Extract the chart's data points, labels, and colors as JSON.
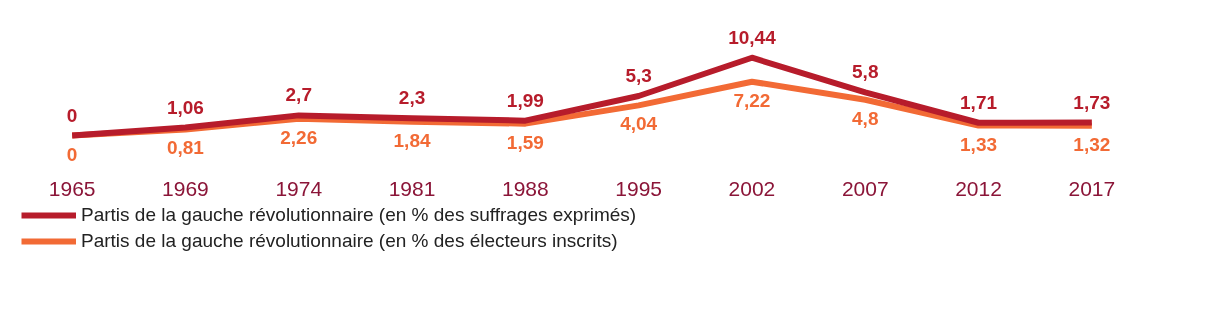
{
  "chart_data": {
    "type": "line",
    "categories": [
      "1965",
      "1969",
      "1974",
      "1981",
      "1988",
      "1995",
      "2002",
      "2007",
      "2012",
      "2017"
    ],
    "series": [
      {
        "name": "Partis de la gauche révolutionnaire (en % des suffrages exprimés)",
        "color": "#b71c2b",
        "values": [
          0,
          1.06,
          2.7,
          2.3,
          1.99,
          5.3,
          10.44,
          5.8,
          1.71,
          1.73
        ],
        "value_labels": [
          "0",
          "1,06",
          "2,7",
          "2,3",
          "1,99",
          "5,3",
          "10,44",
          "5,8",
          "1,71",
          "1,73"
        ]
      },
      {
        "name": "Partis de la gauche révolutionnaire (en % des électeurs inscrits)",
        "color": "#f26a35",
        "values": [
          0,
          0.81,
          2.26,
          1.84,
          1.59,
          4.04,
          7.22,
          4.8,
          1.33,
          1.32
        ],
        "value_labels": [
          "0",
          "0,81",
          "2,26",
          "1,84",
          "1,59",
          "4,04",
          "7,22",
          "4,8",
          "1,33",
          "1,32"
        ]
      }
    ],
    "legend": "bottom left",
    "line_style": "solid"
  }
}
